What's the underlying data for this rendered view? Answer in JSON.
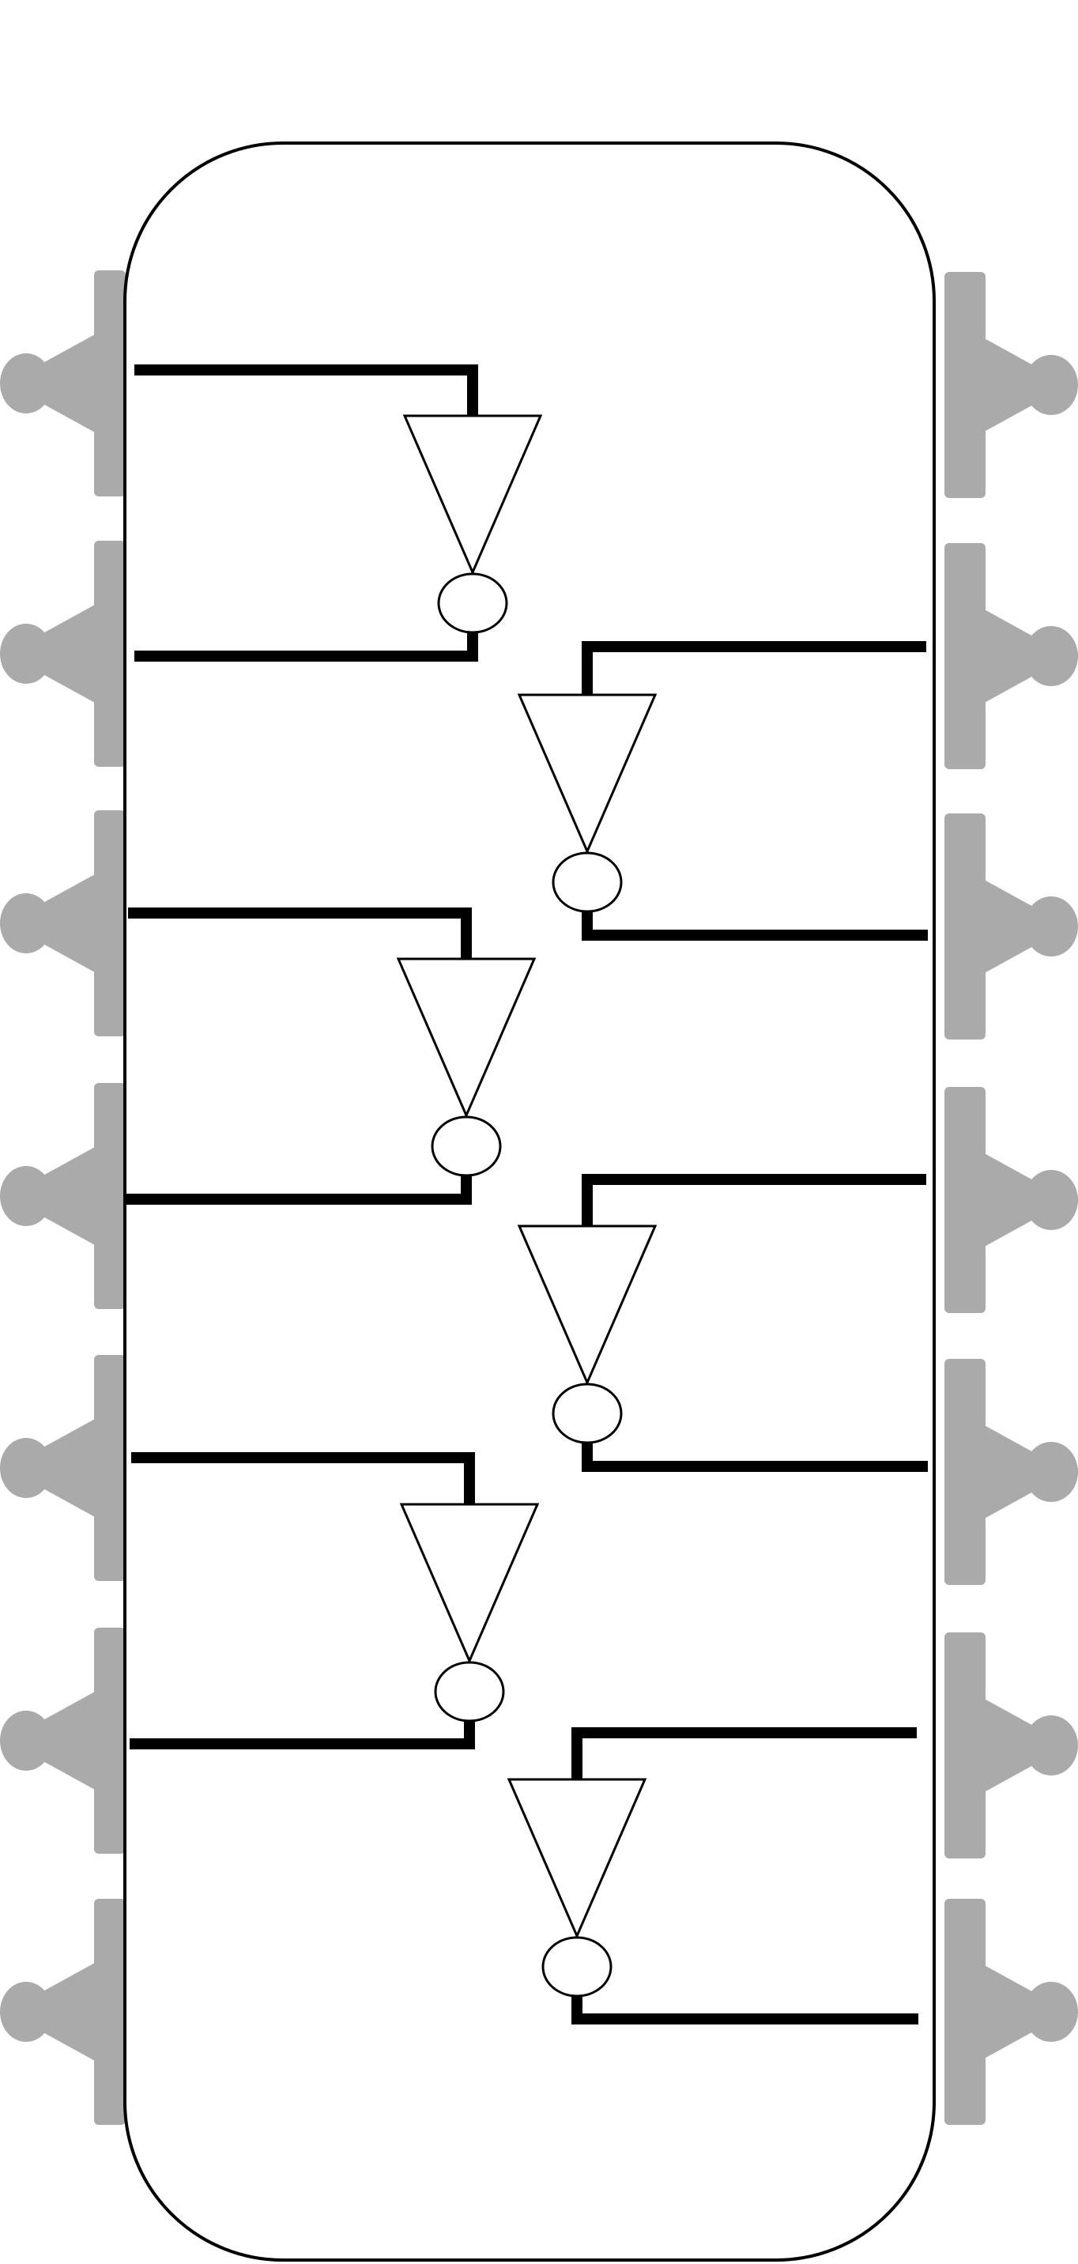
{
  "diagram": {
    "kind": "hex-inverter-ic-schematic",
    "package": "dual-in-line",
    "pin_count": 14,
    "pins_per_side": 7,
    "gate_count": 6,
    "gate_type": "inverter",
    "colors": {
      "background": "#ffffff",
      "body_outline": "#000000",
      "pin": "#aaaaaa",
      "wire": "#000000",
      "gate_outline": "#000000",
      "gate_fill": "#ffffff"
    },
    "gates": [
      {
        "id": "gate-1",
        "input_side": "left",
        "output_side": "left"
      },
      {
        "id": "gate-2",
        "input_side": "right",
        "output_side": "right"
      },
      {
        "id": "gate-3",
        "input_side": "left",
        "output_side": "left"
      },
      {
        "id": "gate-4",
        "input_side": "right",
        "output_side": "right"
      },
      {
        "id": "gate-5",
        "input_side": "left",
        "output_side": "left"
      },
      {
        "id": "gate-6",
        "input_side": "right",
        "output_side": "right"
      }
    ]
  }
}
